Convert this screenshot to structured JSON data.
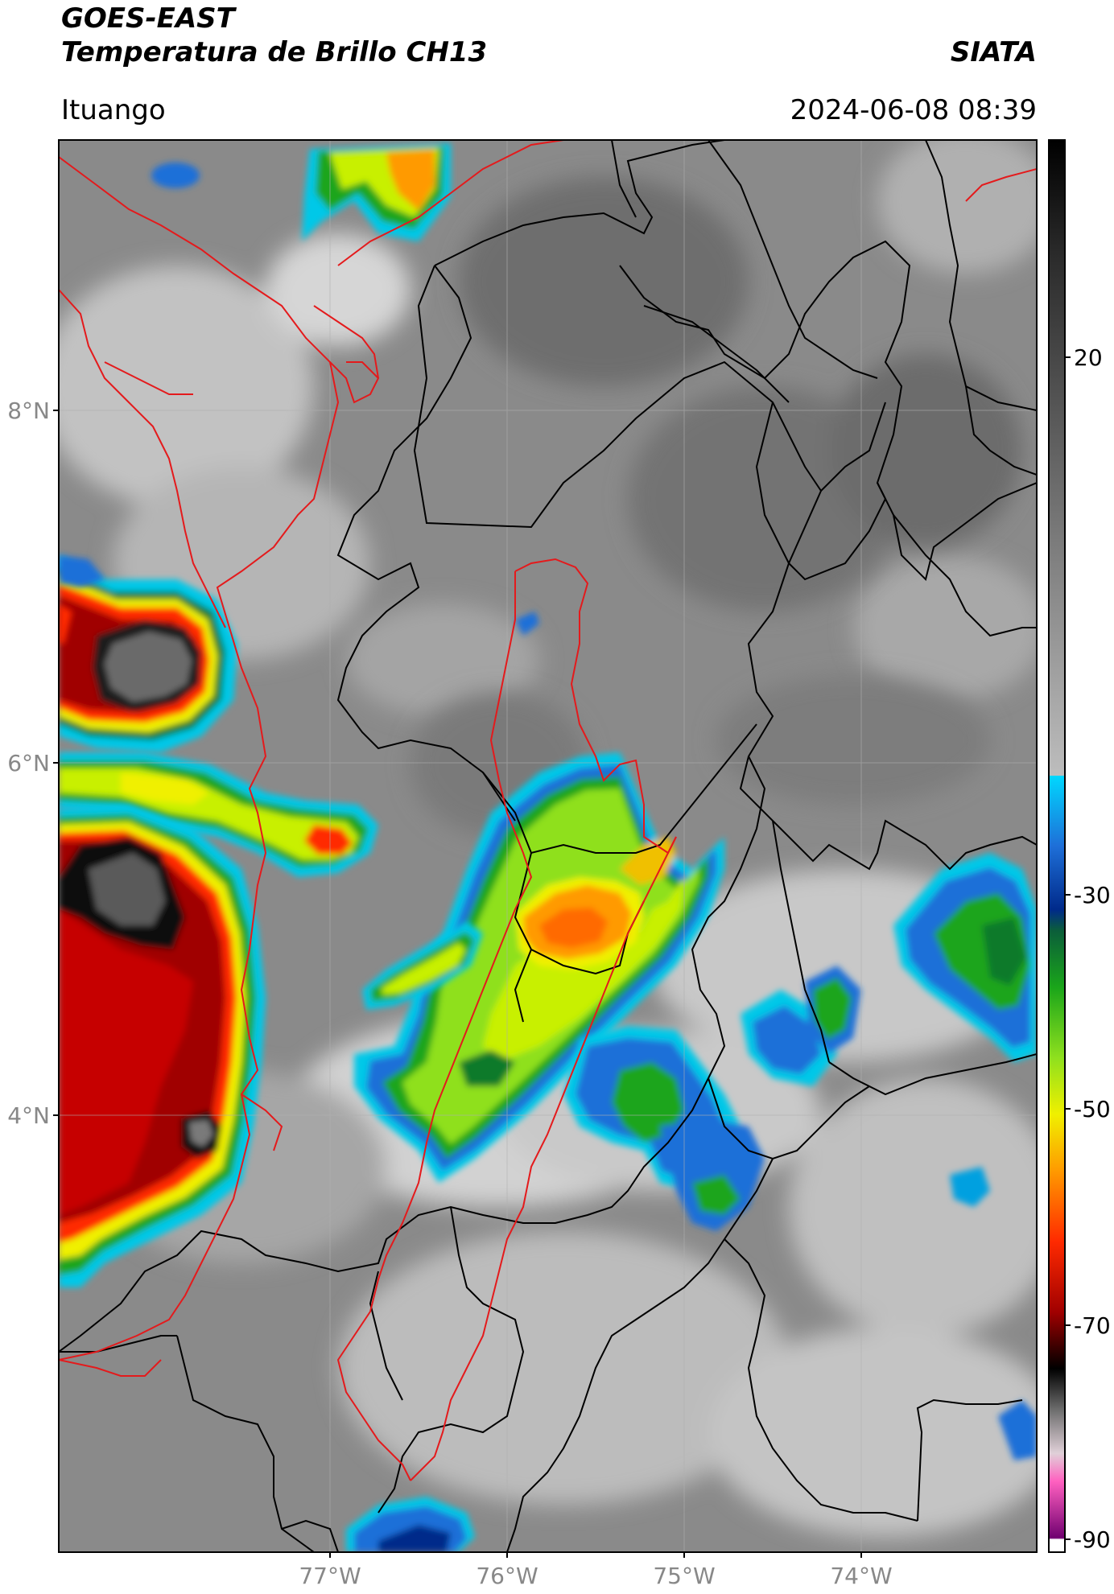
{
  "header": {
    "satellite": "GOES-EAST",
    "product": "Temperatura de Brillo CH13",
    "brand": "SIATA",
    "location": "Ituango",
    "datetime": "2024-06-08 08:39"
  },
  "map": {
    "lat_labels": [
      "8°N",
      "6°N",
      "4°N"
    ],
    "lon_labels": [
      "77°W",
      "76°W",
      "75°W",
      "74°W"
    ],
    "colors": {
      "border_red": "#e41a1c",
      "border_black": "#000000",
      "background_gray": "#8a8a8a"
    }
  },
  "colorbar": {
    "ticks": [
      "20",
      "-30",
      "-50",
      "-70",
      "-90"
    ]
  }
}
